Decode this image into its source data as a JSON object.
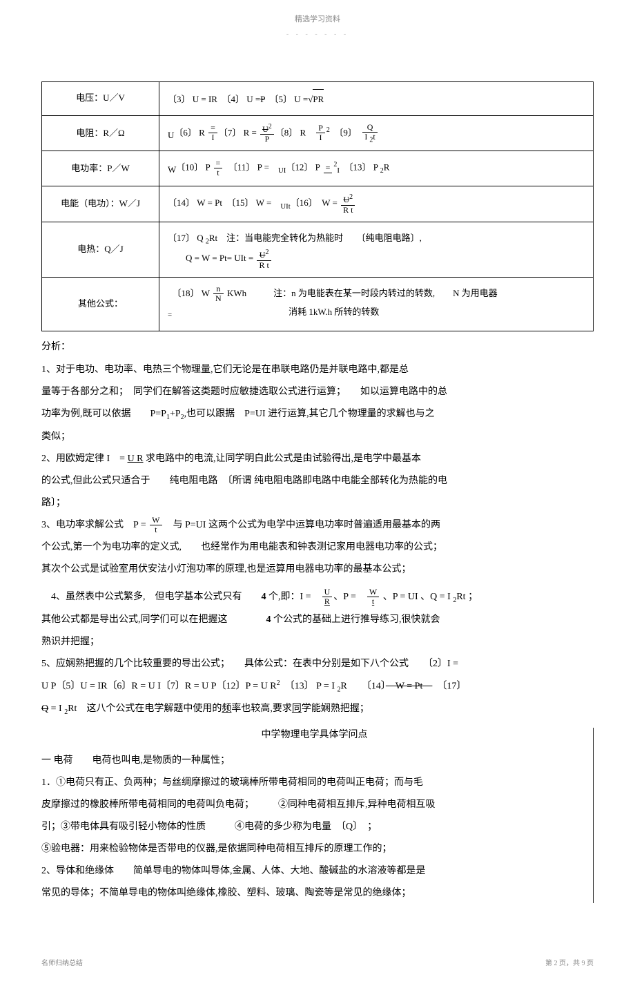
{
  "header": {
    "title": "精选学习资料",
    "dashes": "- - - - - - -"
  },
  "table": {
    "rows": [
      {
        "label": "电压：U／V",
        "formula": "〔3〕 U = IR　〔4〕 U =<span class='strike'>P</span>　〔5〕 U =<span class='sqrt-sign'></span><span class='sqrt'>PR</span>"
      },
      {
        "label": "电阻：R／Ω",
        "formula": "<span style='vertical-align:sub'>U</span>〔6〕 R <span class='frac'><span class='num'>=</span><span class='den'>I</span></span>〔7〕 R = <span class='frac'><span class='num'><span style='text-decoration:line-through'>U</span><span class='sup'>2</span></span><span class='den'>P</span></span>〔8〕 R　<span class='frac'><span class='num'>P</span><span class='den'>I</span></span><span class='sup'>2</span>　〔9〕　<span class='frac'><span class='num'>Q</span><span class='den'>I <span class='sub'>2</span>t</span></span>"
      },
      {
        "label": "电功率：P／W",
        "formula": "<span style='vertical-align:sub'>W</span>〔10〕 P <span class='frac'><span class='num'>=</span><span class='den'>t</span></span>　〔11〕 P =　<sub>UI</sub>〔12〕 P <span class='frac'><span class='num'>=</span><span class='den'></span></span><span class='sup'>2</span><sub>I</sub>　〔13〕 P <span class='sub'>2</span>R"
      },
      {
        "label": "电能（电功）：W／J",
        "formula": "〔14〕 W = Pt　〔15〕 W =　<sub>UIt</sub>〔16〕　W = <span class='frac'><span class='num'><span style='text-decoration:line-through'>U</span><span class='sup'>2</span></span><span class='den'>R t</span></span>"
      },
      {
        "label": "电热：Q／J",
        "formula": "〔17〕 Q <span class='sub'>2</span>Rt　注：当电能完全转化为热能时　　〔纯电阻电路〕,<br>　　Q = W = Pt= UIt = <span class='frac'><span class='num'><span style='text-decoration:line-through'>U</span><span class='sup'>2</span></span><span class='den'>R t</span></span>"
      },
      {
        "label": "其他公式：",
        "formula": "　〔18〕 W <span class='frac'><span class='num'>n</span><span class='den'>N</span></span> KWh　　　注：n 为电能表在某一时段内转过的转数,　　N 为用电器<br><sub>=</sub>　　　　　　　　　　　　　消耗 1kW.h 所转的转数"
      }
    ]
  },
  "analysis": {
    "title": "分析：",
    "p1": "1、对于电功、电功率、电热三个物理量,它们无论是在串联电路仍是并联电路中,都是总",
    "p2": "量等于各部分之和；　同学们在解答这类题时应敏捷选取公式进行运算；　　如以运算电路中的总",
    "p3": "功率为例,既可以依据　　P=P<span class='sub'>1</span>+P<span class='sub'>2</span>,也可以跟据　P=UI 进行运算,其它几个物理量的求解也与之",
    "p4": "类似；",
    "p5": "2、用欧姆定律 I　= <span class='underline'>U R</span> 求电路中的电流,让同学明白此公式是由试验得出,是电学中最基本",
    "p6": "的公式,但此公式只适合于　　纯电阻电路　〔所谓 纯电阻电路即电路中电能全部转化为热能的电",
    "p7": "路〕；",
    "p8a": "3、电功率求解公式　P = <span class='frac'><span class='num'>W</span><span class='den'>t</span></span>　与 P=UI 这两个公式为电学中运算电功率时普遍适用最基本的两",
    "p9": "个公式,第一个为电功率的定义式,　　也经常作为用电能表和钟表测记家用电器电功率的公式；",
    "p10": "其次个公式是试验室用伏安法小灯泡功率的原理,也是运算用电器电功率的最基本公式；",
    "p11": "　4、虽然表中公式繁多,　但电学基本公式只有　　<b>4</b> 个,即：I =　<span class='frac'><span class='num'>U</span><span class='den underline'>R</span></span>、P =　<span class='frac'><span class='num'>W</span><span class='den underline'>t</span></span> 、P = UI 、Q = I <span class='sub'>2</span>Rt ；",
    "p12": "其他公式都是导出公式,同学们可以在把握这　　　　<b>4</b> 个公式的基础上进行推导练习,很快就会",
    "p13": "熟识并把握；",
    "p14": "5、应娴熟把握的几个比较重要的导出公式；　　具体公式：在表中分别是如下八个公式　　〔2〕I =",
    "p15": "U P〔5〕U = IR〔6〕R = U I〔7〕R = U P〔12〕P = U R<span class='sup'>2</span>　〔13〕 P = I <span class='sub'>2</span>R　　〔14〕<span class='strike'>　W = Pt　</span>　〔17〕",
    "p16": "<span class='strike'>Q</span> = I <span class='sub'>2</span>Rt　这八个公式在电学解题中使用的<span class='underline'>频</span>率也较高,要求<span class='underline'>同</span>学能娴熟把握；",
    "sectionTitle": "中学物理电学具体学问点",
    "s1": "一 电荷　　电荷也叫电,是物质的一种属性；",
    "s2": "1．①电荷只有正、负两种；与丝绸摩擦过的玻璃棒所带电荷相同的电荷叫正电荷；而与毛",
    "s3": "皮摩擦过的橡胶棒所带电荷相同的电荷叫负电荷；　　　②同种电荷相互排斥,异种电荷相互吸",
    "s4": "引；③带电体具有吸引轻小物体的性质　　　④电荷的多少称为电量　〔Q〕　；",
    "s5": "⑤验电器：用来检验物体是否带电的仪器,是依据同种电荷相互排斥的原理工作的；",
    "s6": "2、导体和绝缘体　　简单导电的物体叫导体,金属、人体、大地、酸碱盐的水溶液等都是是",
    "s7": "常见的导体；不简单导电的物体叫绝缘体,橡胶、塑料、玻璃、陶瓷等是常见的绝缘体；"
  },
  "footer": {
    "left": "名师归纳总结",
    "right": "第 2 页，共 9 页"
  }
}
